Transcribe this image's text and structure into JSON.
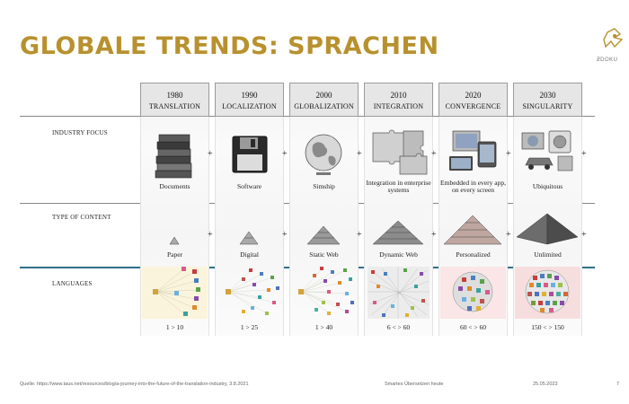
{
  "slide": {
    "title": "GLOBALE TRENDS: SPRACHEN",
    "logo_text": "ƵDOKU"
  },
  "rows": {
    "industry": "INDUSTRY FOCUS",
    "content": "TYPE OF CONTENT",
    "languages": "LANGUAGES"
  },
  "columns": [
    {
      "year": "1980",
      "name": "TRANSLATION",
      "focus": "Documents",
      "content": "Paper",
      "languages": "1 > 10"
    },
    {
      "year": "1990",
      "name": "LOCALIZATION",
      "focus": "Software",
      "content": "Digital",
      "languages": "1 > 25"
    },
    {
      "year": "2000",
      "name": "GLOBALIZATION",
      "focus": "Simship",
      "content": "Static Web",
      "languages": "1 > 40"
    },
    {
      "year": "2010",
      "name": "INTEGRATION",
      "focus": "Integration in enterprise systems",
      "content": "Dynamic Web",
      "languages": "6 < > 60"
    },
    {
      "year": "2020",
      "name": "CONVERGENCE",
      "focus": "Embedded in every app, on every screen",
      "content": "Personalized",
      "languages": "60 < > 60"
    },
    {
      "year": "2030",
      "name": "SINGULARITY",
      "focus": "Ubiquitous",
      "content": "Unlimited",
      "languages": "150 < > 150"
    }
  ],
  "plus_sign": "+",
  "footer": {
    "source": "Quelle: https://www.taus.net/resources/blog/a-journey-into-the-future-of-the-translation-industry, 3.8.2021",
    "center": "Smartes Übersetzen heute",
    "date": "25.05.2023",
    "page": "7"
  },
  "colors": {
    "title": "#b8912e",
    "rule": "#2f6f88"
  }
}
